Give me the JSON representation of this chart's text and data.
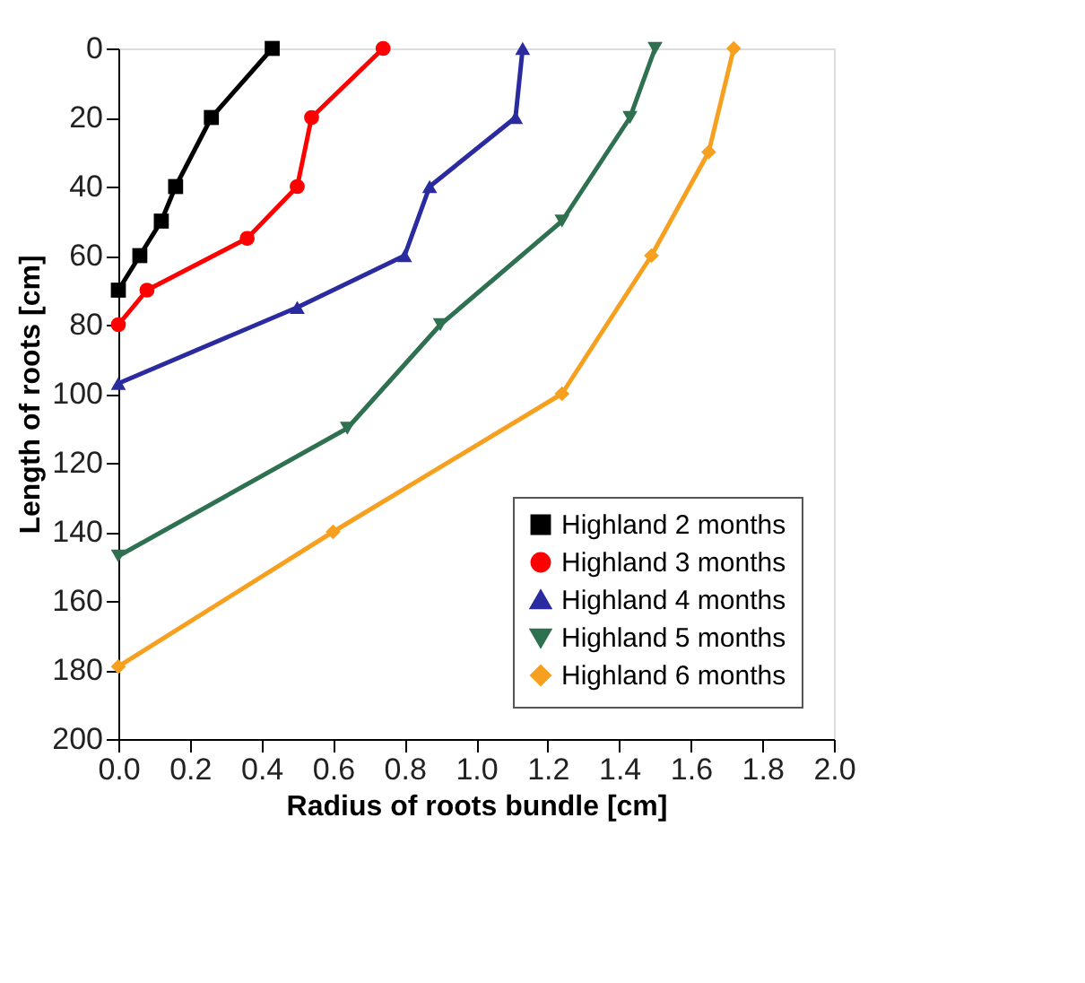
{
  "chart_data": {
    "type": "line",
    "xlabel": "Radius of roots bundle [cm]",
    "ylabel": "Length of roots [cm]",
    "xlim": [
      0,
      2.0
    ],
    "ylim": [
      200,
      0
    ],
    "xticks": [
      {
        "value": 0,
        "label": "0.0"
      },
      {
        "value": 0.2,
        "label": "0.2"
      },
      {
        "value": 0.4,
        "label": "0.4"
      },
      {
        "value": 0.6,
        "label": "0.6"
      },
      {
        "value": 0.8,
        "label": "0.8"
      },
      {
        "value": 1.0,
        "label": "1.0"
      },
      {
        "value": 1.2,
        "label": "1.2"
      },
      {
        "value": 1.4,
        "label": "1.4"
      },
      {
        "value": 1.6,
        "label": "1.6"
      },
      {
        "value": 1.8,
        "label": "1.8"
      },
      {
        "value": 2.0,
        "label": "2.0"
      }
    ],
    "yticks": [
      0,
      20,
      40,
      60,
      80,
      100,
      120,
      140,
      160,
      180,
      200
    ],
    "grid": false,
    "legend": "bottom right",
    "line_style": "solid",
    "series": [
      {
        "name": "Highland 2 months",
        "color": "#000000",
        "marker": "square",
        "x": [
          0.43,
          0.26,
          0.16,
          0.12,
          0.06,
          0
        ],
        "values": [
          0,
          20,
          40,
          50,
          60,
          70
        ]
      },
      {
        "name": "Highland 3 months",
        "color": "#ff0000",
        "marker": "circle",
        "x": [
          0.74,
          0.54,
          0.5,
          0.36,
          0.08,
          0
        ],
        "values": [
          0,
          20,
          40,
          55,
          70,
          80
        ]
      },
      {
        "name": "Highland 4 months",
        "color": "#2b2ba0",
        "marker": "triangle",
        "x": [
          1.13,
          1.11,
          0.87,
          0.8,
          0.5,
          0
        ],
        "values": [
          0,
          20,
          40,
          60,
          75,
          97
        ]
      },
      {
        "name": "Highland 5 months",
        "color": "#2e7050",
        "marker": "triangle-down",
        "x": [
          1.5,
          1.43,
          1.24,
          0.9,
          0.64,
          0
        ],
        "values": [
          0,
          20,
          50,
          80,
          110,
          147
        ]
      },
      {
        "name": "Highland 6 months",
        "color": "#f7a020",
        "marker": "diamond",
        "x": [
          1.72,
          1.65,
          1.49,
          1.24,
          0.6,
          0
        ],
        "values": [
          0,
          30,
          60,
          100,
          140,
          179
        ]
      }
    ]
  }
}
